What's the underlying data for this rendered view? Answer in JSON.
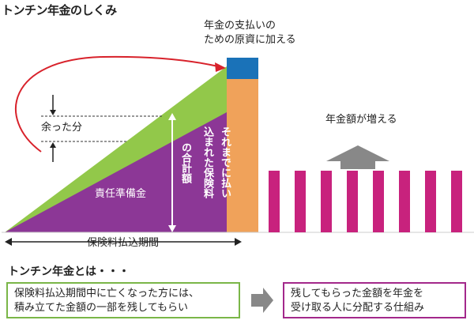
{
  "title": "トンチン年金のしくみ",
  "top_note": "年金の支払いの\nための原資に加える",
  "increase_label": "年金額が増える",
  "surplus_label": "余った分",
  "reserve_label": "責任準備金",
  "premium_total_label": "それまでに払い込まれた保険料の合計額",
  "premium_total_col1": "それまでに払い",
  "premium_total_col2": "込まれた保険料",
  "premium_total_col3": "の合計額",
  "period_label": "保険料払込期間",
  "section_title": "トンチン年金とは・・・",
  "box_left_text": "保険料払込期間中に亡くなった方には、\n積み立てた金額の一部を残してもらい",
  "box_right_text": "残してもらった金額を年金を\n受け取る人に分配する仕組み",
  "colors": {
    "green": "#92c84a",
    "purple": "#8c3796",
    "orange": "#f0a25a",
    "blue": "#1a72b8",
    "magenta": "#c8227d",
    "arrow_red": "#d8222b",
    "gray_arrow": "#888888"
  },
  "pension_bar_count": 8
}
